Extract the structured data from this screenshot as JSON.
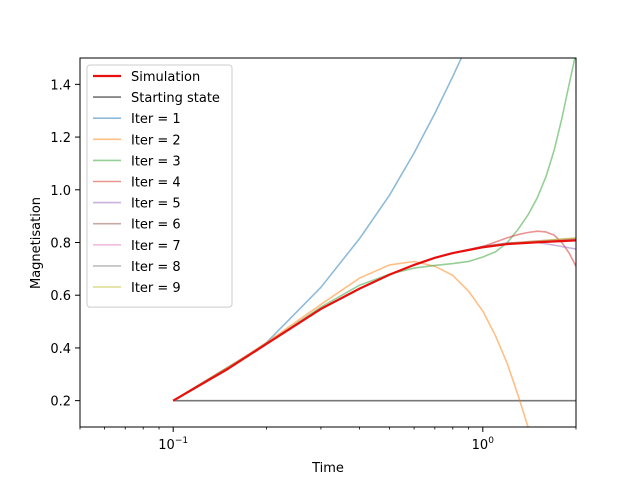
{
  "chart_data": {
    "type": "line",
    "title": "",
    "xlabel": "Time",
    "ylabel": "Magnetisation",
    "xscale": "log",
    "xlim": [
      0.05,
      2.0
    ],
    "ylim": [
      0.1,
      1.5
    ],
    "grid": false,
    "legend_position": "top-left",
    "x_ticks": [
      {
        "value": 0.1,
        "base": "10",
        "exp": "−1"
      },
      {
        "value": 1.0,
        "base": "10",
        "exp": "0"
      }
    ],
    "y_ticks": [
      "0.2",
      "0.4",
      "0.6",
      "0.8",
      "1.0",
      "1.2",
      "1.4"
    ],
    "series": [
      {
        "name": "Simulation",
        "color": "#e8100e",
        "opacity": 1.0,
        "width": 2.2,
        "x": [
          0.1,
          0.15,
          0.2,
          0.3,
          0.4,
          0.5,
          0.6,
          0.7,
          0.8,
          1.0,
          1.2,
          1.5,
          2.0
        ],
        "y": [
          0.2,
          0.32,
          0.415,
          0.548,
          0.625,
          0.678,
          0.715,
          0.742,
          0.76,
          0.782,
          0.794,
          0.801,
          0.808
        ]
      },
      {
        "name": "Starting state",
        "color": "#777777",
        "opacity": 1.0,
        "width": 1.6,
        "x": [
          0.1,
          2.0
        ],
        "y": [
          0.2,
          0.2
        ]
      },
      {
        "name": "Iter = 1",
        "color": "#1f77b4",
        "opacity": 0.5,
        "width": 1.6,
        "x": [
          0.1,
          0.15,
          0.2,
          0.3,
          0.4,
          0.5,
          0.6,
          0.7,
          0.8,
          0.9,
          1.0
        ],
        "y": [
          0.2,
          0.32,
          0.42,
          0.63,
          0.815,
          0.98,
          1.14,
          1.29,
          1.43,
          1.56,
          1.68
        ]
      },
      {
        "name": "Iter = 2",
        "color": "#ff7f0e",
        "opacity": 0.5,
        "width": 1.6,
        "x": [
          0.1,
          0.15,
          0.2,
          0.3,
          0.4,
          0.5,
          0.6,
          0.7,
          0.8,
          0.9,
          1.0,
          1.1,
          1.2,
          1.3,
          1.4
        ],
        "y": [
          0.2,
          0.325,
          0.42,
          0.565,
          0.665,
          0.715,
          0.728,
          0.71,
          0.675,
          0.615,
          0.54,
          0.445,
          0.34,
          0.22,
          0.1
        ]
      },
      {
        "name": "Iter = 3",
        "color": "#2ca02c",
        "opacity": 0.5,
        "width": 1.6,
        "x": [
          0.1,
          0.15,
          0.2,
          0.3,
          0.4,
          0.5,
          0.6,
          0.7,
          0.8,
          0.9,
          1.0,
          1.1,
          1.2,
          1.3,
          1.4,
          1.5,
          1.6,
          1.7,
          1.8,
          1.9,
          2.0
        ],
        "y": [
          0.2,
          0.32,
          0.415,
          0.555,
          0.638,
          0.68,
          0.703,
          0.713,
          0.72,
          0.728,
          0.745,
          0.765,
          0.8,
          0.85,
          0.905,
          0.97,
          1.05,
          1.15,
          1.27,
          1.4,
          1.52
        ]
      },
      {
        "name": "Iter = 4",
        "color": "#d62728",
        "opacity": 0.5,
        "width": 1.6,
        "x": [
          0.1,
          0.2,
          0.3,
          0.4,
          0.5,
          0.6,
          0.7,
          0.8,
          0.9,
          1.0,
          1.1,
          1.2,
          1.3,
          1.4,
          1.5,
          1.6,
          1.7,
          1.8,
          1.9,
          2.0
        ],
        "y": [
          0.2,
          0.415,
          0.548,
          0.625,
          0.678,
          0.715,
          0.742,
          0.76,
          0.772,
          0.785,
          0.802,
          0.818,
          0.83,
          0.838,
          0.843,
          0.84,
          0.828,
          0.8,
          0.76,
          0.71
        ]
      },
      {
        "name": "Iter = 5",
        "color": "#9467bd",
        "opacity": 0.5,
        "width": 1.6,
        "x": [
          0.1,
          0.2,
          0.3,
          0.4,
          0.5,
          0.6,
          0.7,
          0.8,
          1.0,
          1.2,
          1.5,
          1.7,
          2.0
        ],
        "y": [
          0.2,
          0.415,
          0.548,
          0.625,
          0.678,
          0.715,
          0.742,
          0.76,
          0.785,
          0.798,
          0.8,
          0.79,
          0.775
        ]
      },
      {
        "name": "Iter = 6",
        "color": "#8c564b",
        "opacity": 0.5,
        "width": 1.6,
        "x": [
          0.1,
          0.2,
          0.3,
          0.4,
          0.5,
          0.6,
          0.7,
          0.8,
          1.0,
          1.2,
          1.5,
          2.0
        ],
        "y": [
          0.2,
          0.415,
          0.548,
          0.625,
          0.678,
          0.715,
          0.742,
          0.76,
          0.784,
          0.797,
          0.806,
          0.815
        ]
      },
      {
        "name": "Iter = 7",
        "color": "#e377c2",
        "opacity": 0.5,
        "width": 1.6,
        "x": [
          0.1,
          0.2,
          0.3,
          0.4,
          0.5,
          0.6,
          0.7,
          0.8,
          1.0,
          1.2,
          1.5,
          2.0
        ],
        "y": [
          0.2,
          0.415,
          0.548,
          0.625,
          0.678,
          0.715,
          0.742,
          0.76,
          0.783,
          0.795,
          0.804,
          0.812
        ]
      },
      {
        "name": "Iter = 8",
        "color": "#7f7f7f",
        "opacity": 0.5,
        "width": 1.6,
        "x": [
          0.1,
          0.2,
          0.3,
          0.4,
          0.5,
          0.6,
          0.7,
          0.8,
          1.0,
          1.2,
          1.5,
          2.0
        ],
        "y": [
          0.2,
          0.415,
          0.548,
          0.625,
          0.678,
          0.715,
          0.742,
          0.76,
          0.782,
          0.794,
          0.802,
          0.81
        ]
      },
      {
        "name": "Iter = 9",
        "color": "#bcbd22",
        "opacity": 0.5,
        "width": 1.6,
        "x": [
          0.1,
          0.2,
          0.3,
          0.4,
          0.5,
          0.6,
          0.7,
          0.8,
          1.0,
          1.2,
          1.5,
          2.0
        ],
        "y": [
          0.2,
          0.415,
          0.548,
          0.625,
          0.678,
          0.715,
          0.742,
          0.76,
          0.783,
          0.796,
          0.805,
          0.818
        ]
      }
    ]
  }
}
